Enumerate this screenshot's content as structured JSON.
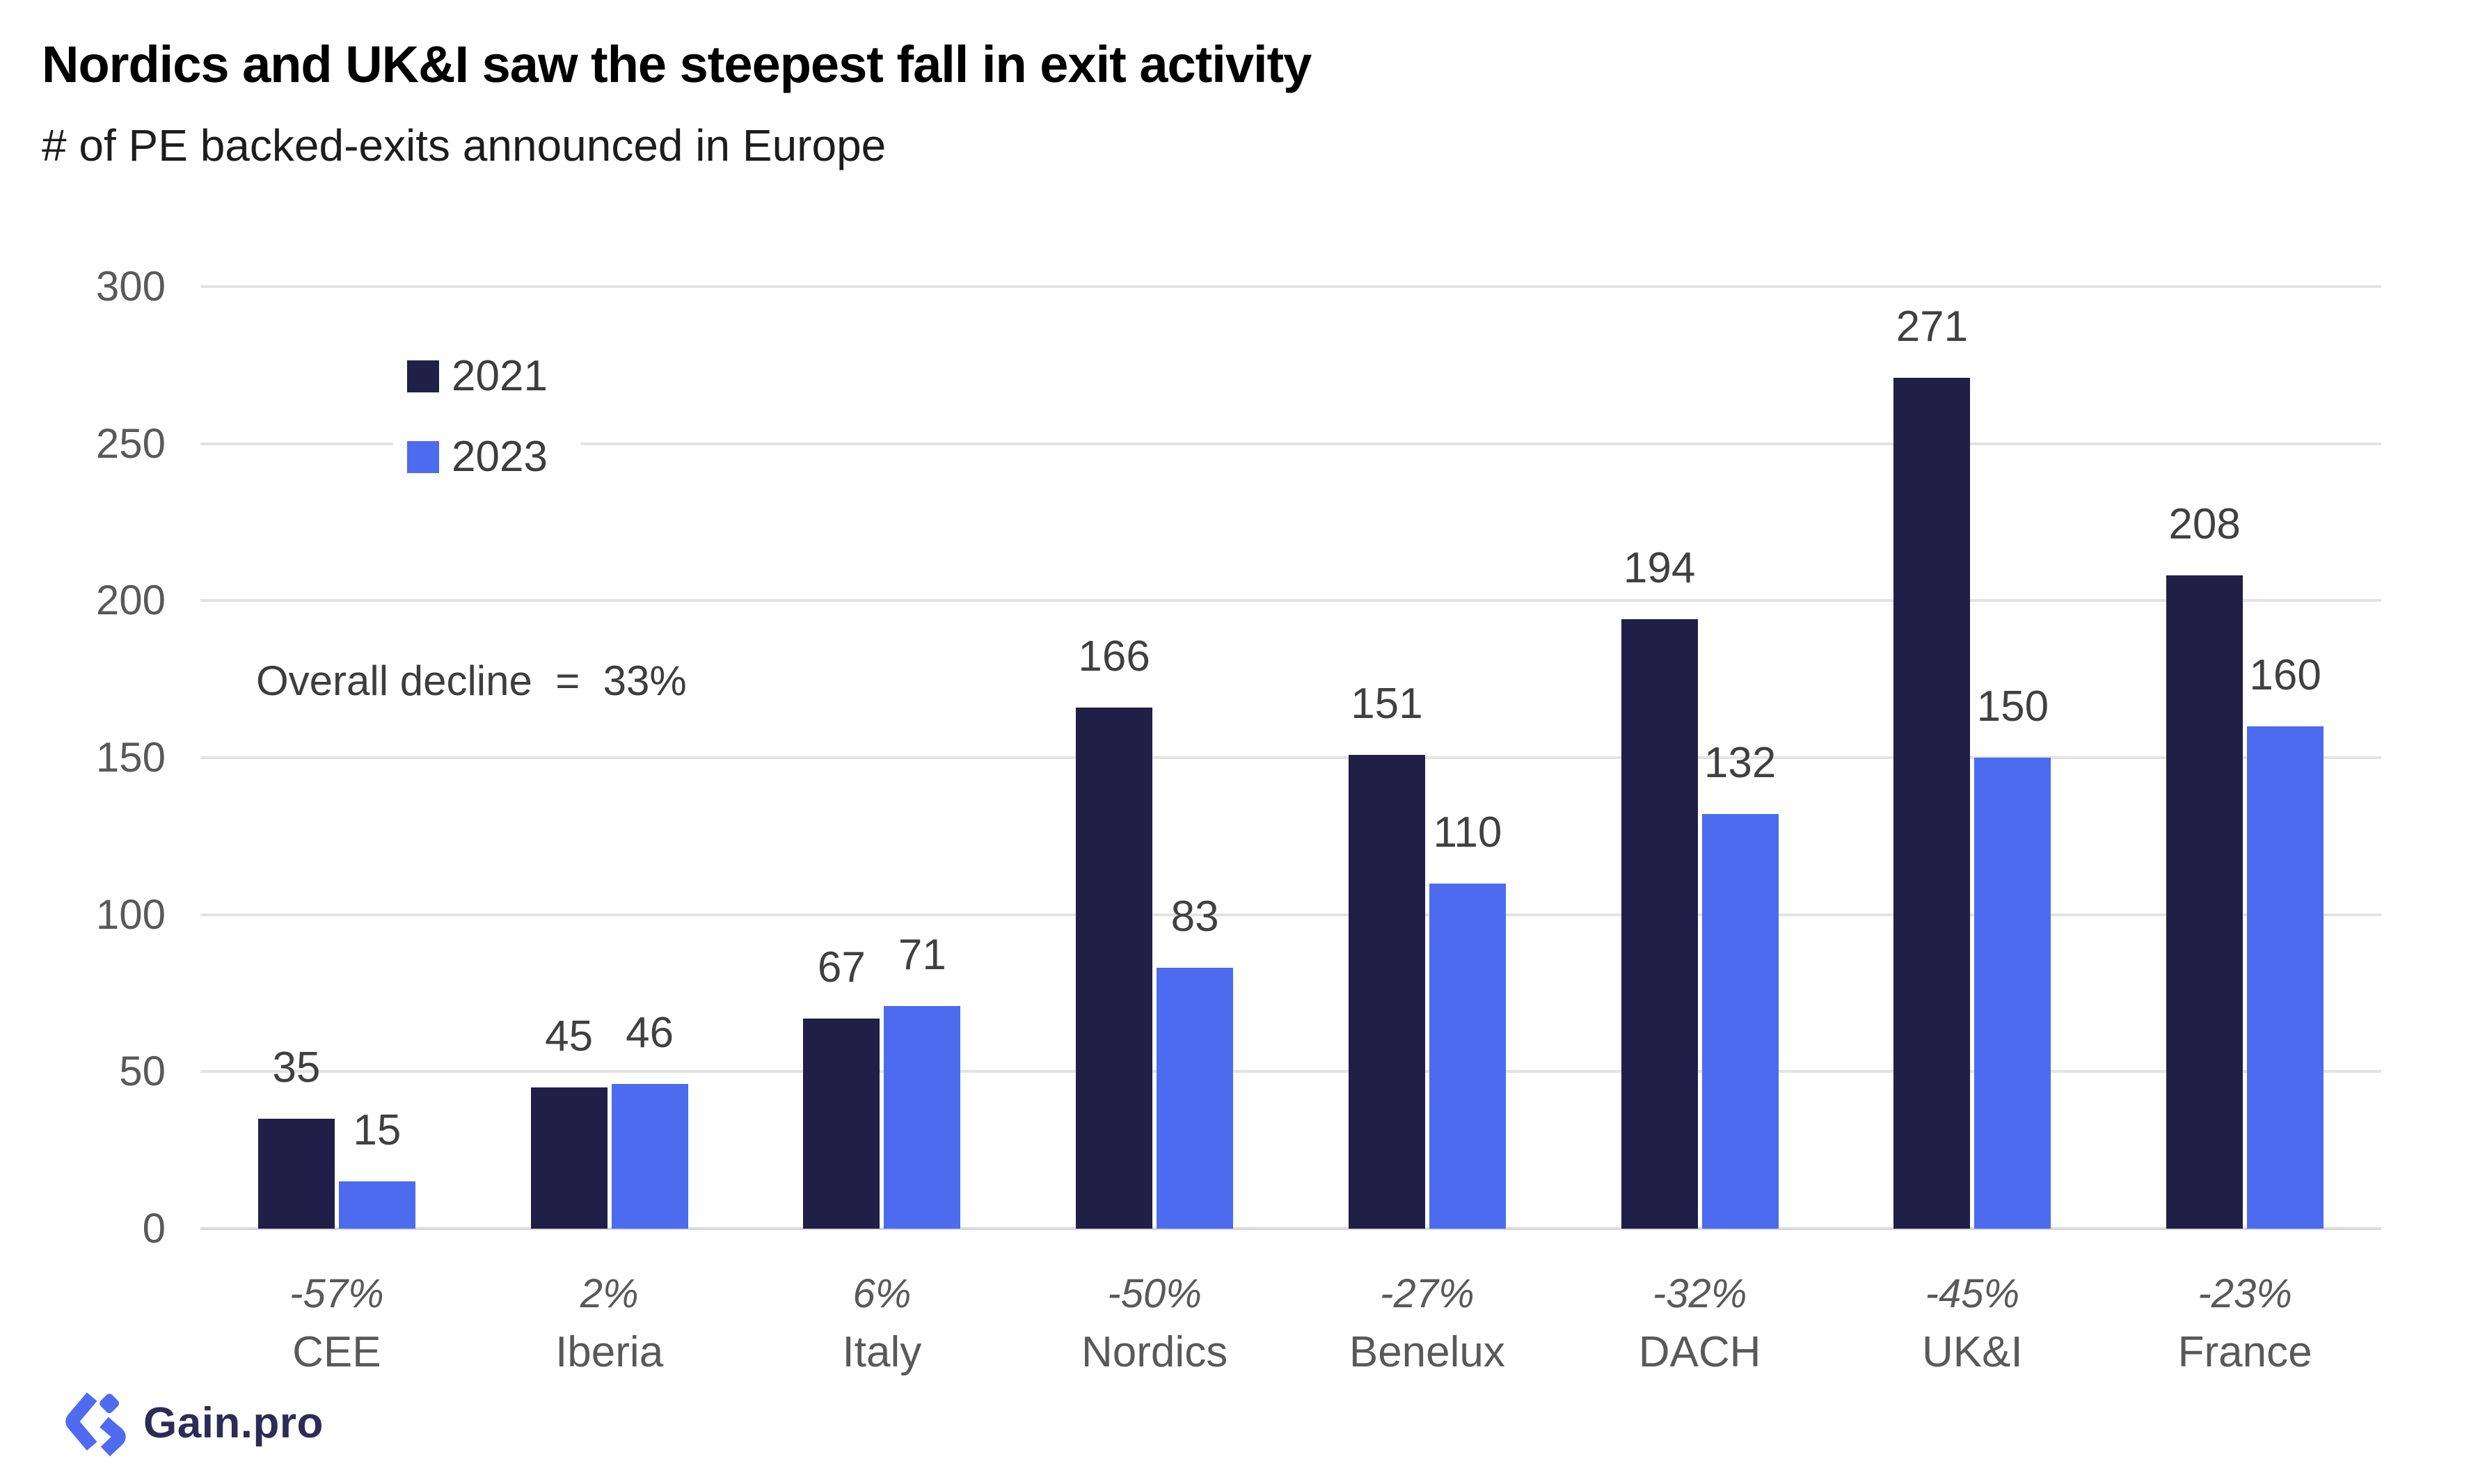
{
  "header": {
    "title": "Nordics and UK&I saw the steepest fall in exit activity",
    "subtitle": "# of PE backed-exits announced in Europe"
  },
  "chart_data": {
    "type": "bar",
    "title": "Nordics and UK&I saw the steepest fall in exit activity",
    "subtitle": "# of PE backed-exits announced in Europe",
    "categories": [
      "CEE",
      "Iberia",
      "Italy",
      "Nordics",
      "Benelux",
      "DACH",
      "UK&I",
      "France"
    ],
    "series": [
      {
        "name": "2021",
        "color": "#211E47",
        "values": [
          35,
          45,
          67,
          166,
          151,
          194,
          271,
          208
        ]
      },
      {
        "name": "2023",
        "color": "#4D6BEF",
        "values": [
          15,
          46,
          71,
          83,
          110,
          132,
          150,
          160
        ]
      }
    ],
    "pct_change": [
      "-57%",
      "2%",
      "6%",
      "-50%",
      "-27%",
      "-32%",
      "-45%",
      "-23%"
    ],
    "ylim": [
      0,
      300
    ],
    "yticks": [
      0,
      50,
      100,
      150,
      200,
      250,
      300
    ],
    "grid": true,
    "legend_position": "top-left",
    "annotation": "Overall decline  =  33%"
  },
  "colors": {
    "bar_2021": "#211E47",
    "bar_2023": "#4D6BEF",
    "gridline": "#e3e3e3",
    "baseline": "#d9d9d9",
    "axis_label": "#595959",
    "value_label": "#404040",
    "logo_icon": "#4F6BF0",
    "logo_text": "#2E2C56"
  },
  "footer": {
    "logo_text": "Gain.pro"
  }
}
